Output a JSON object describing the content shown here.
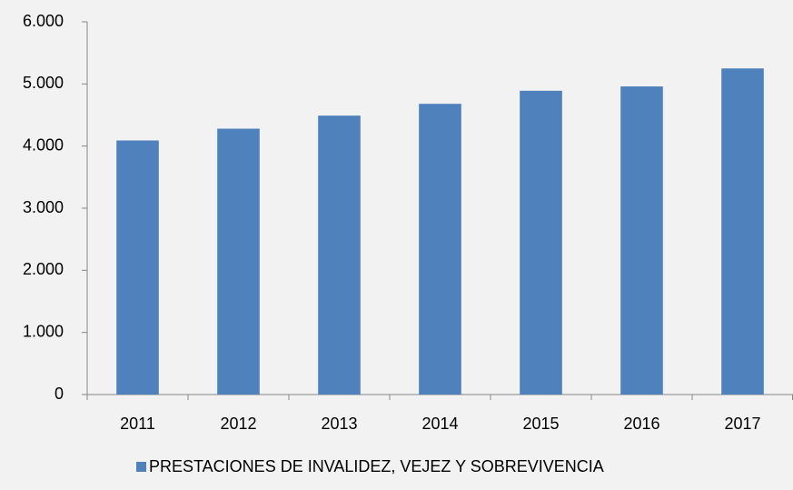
{
  "chart_data": {
    "type": "bar",
    "categories": [
      "2011",
      "2012",
      "2013",
      "2014",
      "2015",
      "2016",
      "2017"
    ],
    "series": [
      {
        "name": "PRESTACIONES DE INVALIDEZ, VEJEZ Y SOBREVIVENCIA",
        "color": "#4f81bd",
        "values": [
          4090,
          4280,
          4490,
          4680,
          4890,
          4960,
          5250
        ]
      }
    ],
    "ylim": [
      0,
      6000
    ],
    "yticks": [
      0,
      {
        "value": 1000,
        "label": "1.000"
      },
      {
        "value": 2000,
        "label": "2.000"
      },
      {
        "value": 3000,
        "label": "3.000"
      },
      {
        "value": 4000,
        "label": "4.000"
      },
      {
        "value": 5000,
        "label": "5.000"
      },
      {
        "value": 6000,
        "label": "6.000"
      }
    ],
    "grid": false,
    "legend": "bottom"
  }
}
